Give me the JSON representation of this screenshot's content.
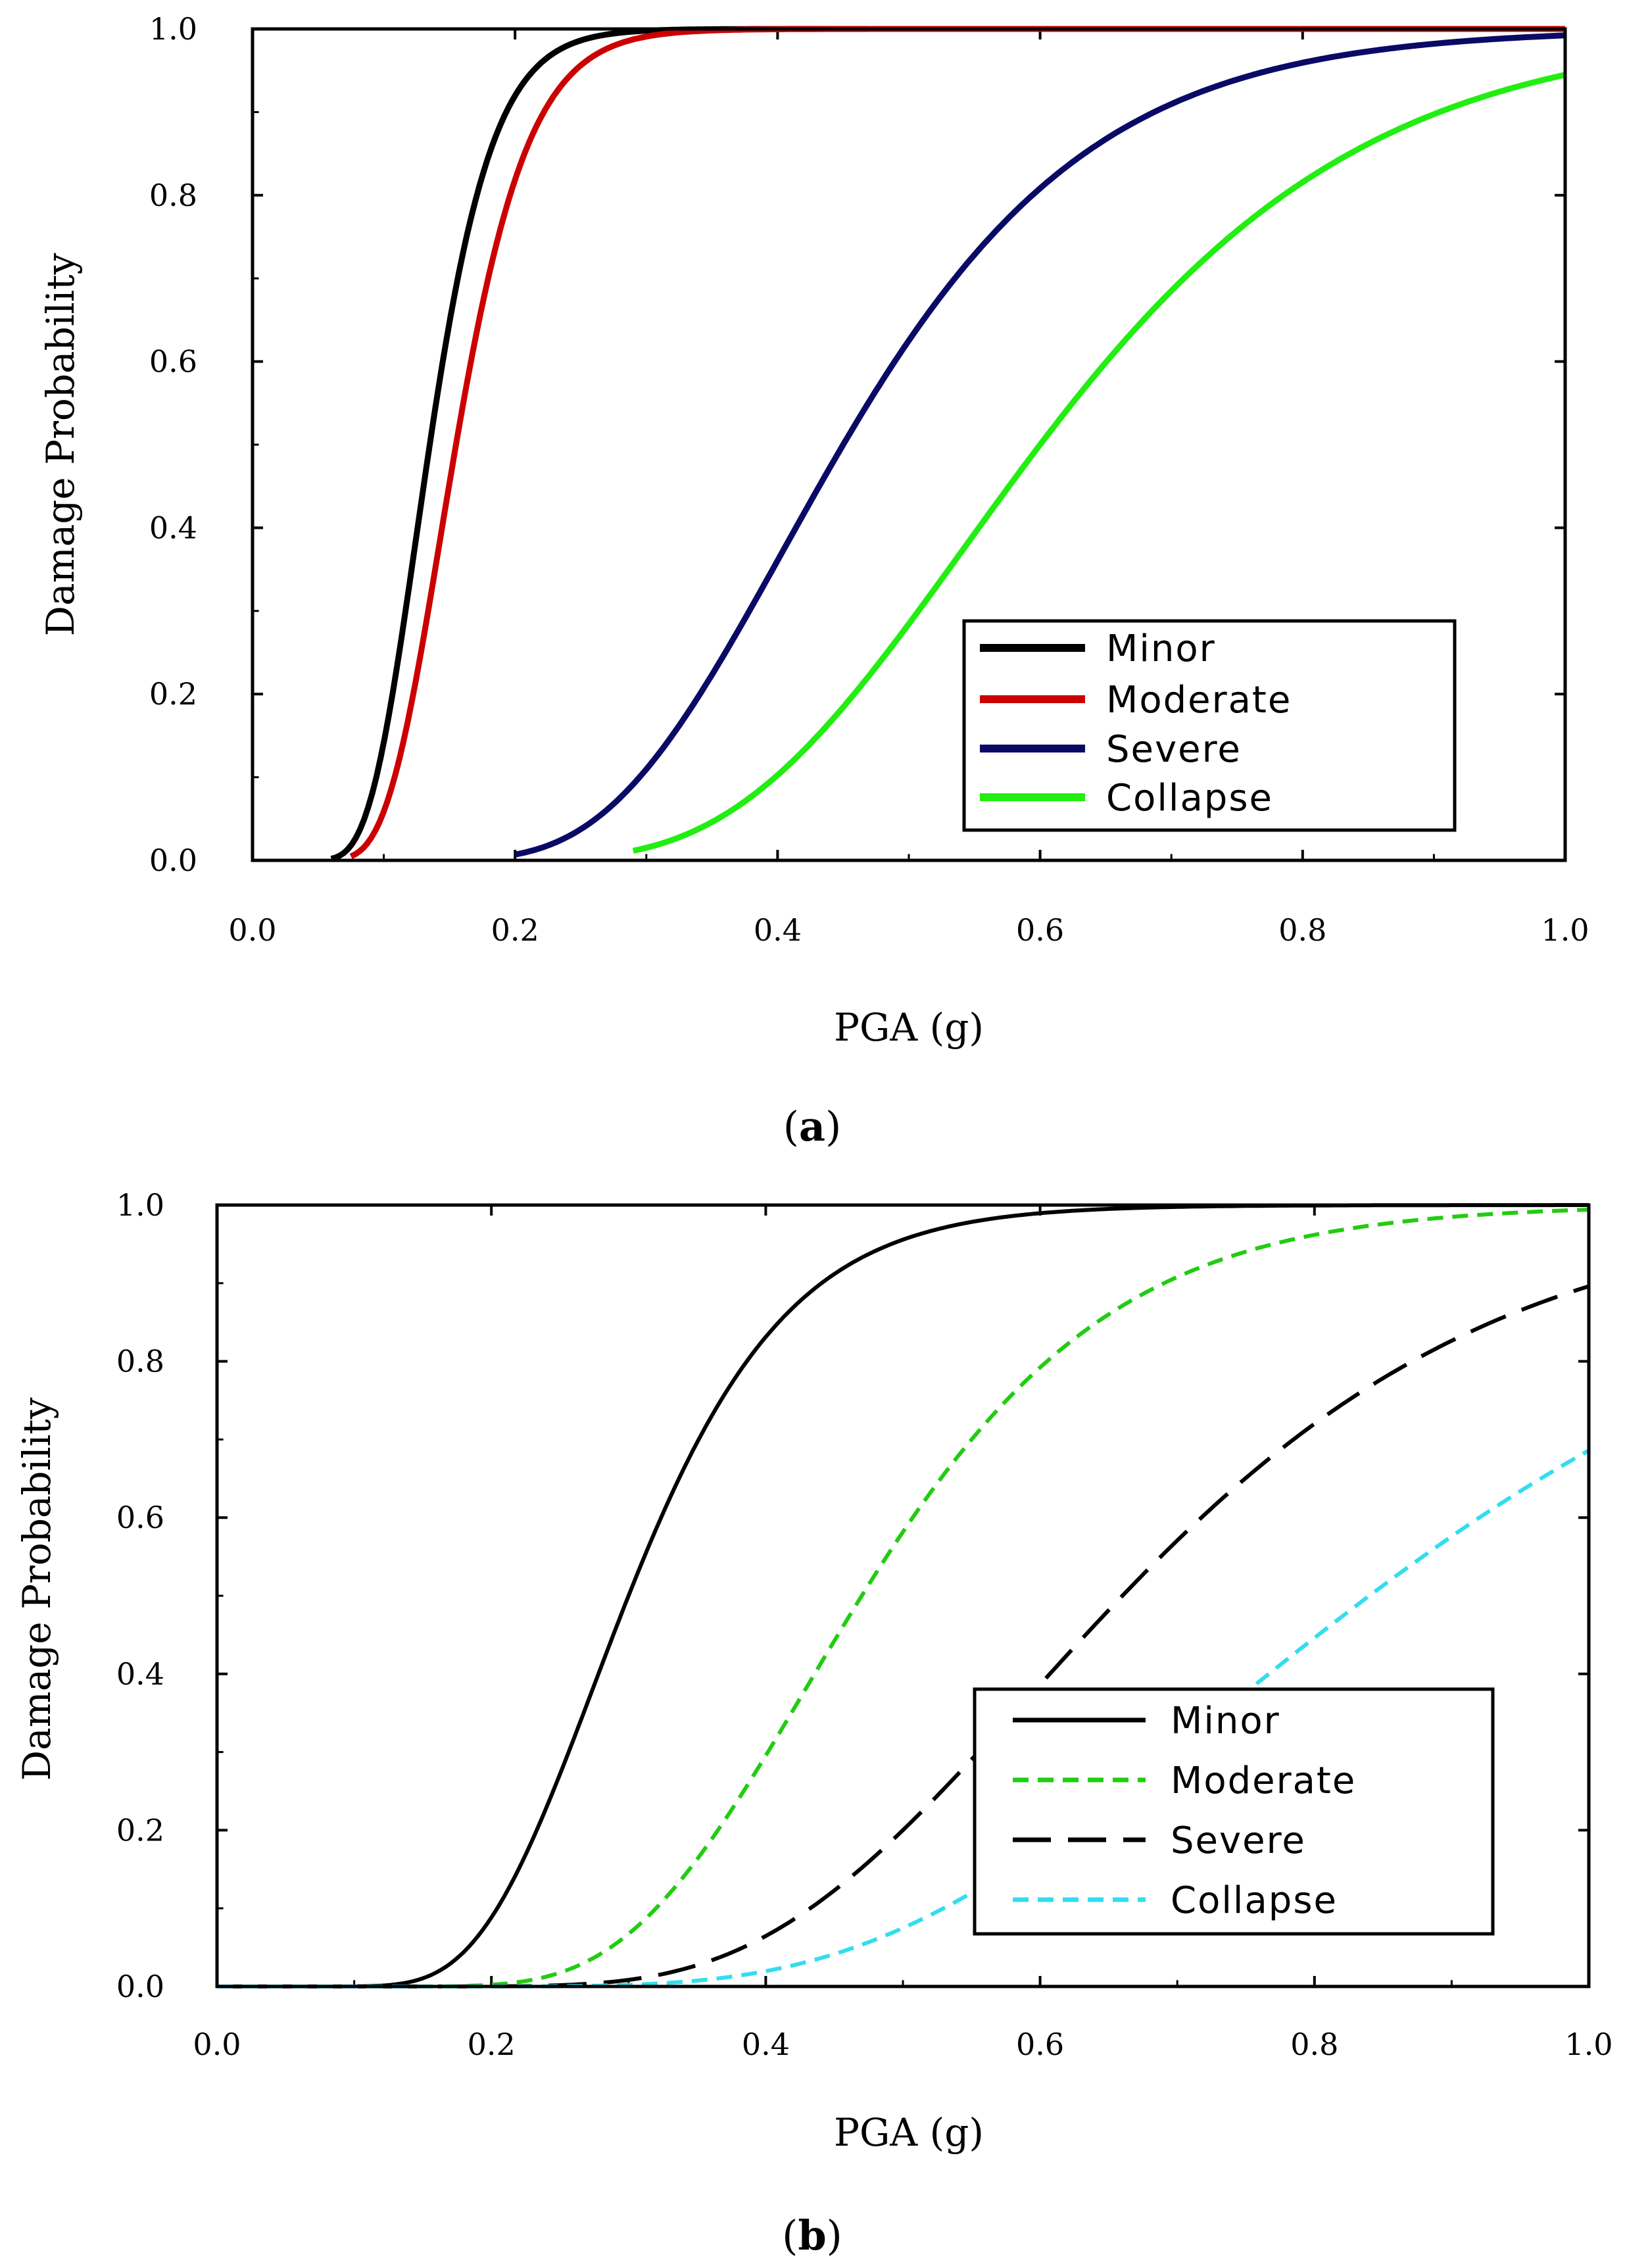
{
  "chart_data": [
    {
      "id": "a",
      "type": "line",
      "panel_label": "a",
      "xlabel": "PGA (g)",
      "ylabel": "Damage Probability",
      "xlim": [
        0,
        1
      ],
      "ylim": [
        0,
        1
      ],
      "xticks": [
        "0.0",
        "0.2",
        "0.4",
        "0.6",
        "0.8",
        "1.0"
      ],
      "yticks": [
        "0.0",
        "0.2",
        "0.4",
        "0.6",
        "0.8",
        "1.0"
      ],
      "legend_position": "bottom-right",
      "series": [
        {
          "name": "Minor",
          "color": "#000000",
          "dash": "solid",
          "median": 0.135,
          "beta": 0.28,
          "start": 0.06
        },
        {
          "name": "Moderate",
          "color": "#cc0000",
          "dash": "solid",
          "median": 0.155,
          "beta": 0.28,
          "start": 0.075
        },
        {
          "name": "Severe",
          "color": "#0a0a66",
          "dash": "solid",
          "median": 0.45,
          "beta": 0.33,
          "start": 0.2
        },
        {
          "name": "Collapse",
          "color": "#22ee11",
          "dash": "solid",
          "median": 0.6,
          "beta": 0.32,
          "start": 0.29
        }
      ]
    },
    {
      "id": "b",
      "type": "line",
      "panel_label": "b",
      "xlabel": "PGA (g)",
      "ylabel": "Damage Probability",
      "xlim": [
        0,
        1
      ],
      "ylim": [
        0,
        1
      ],
      "xticks": [
        "0.0",
        "0.2",
        "0.4",
        "0.6",
        "0.8",
        "1.0"
      ],
      "yticks": [
        "0.0",
        "0.2",
        "0.4",
        "0.6",
        "0.8",
        "1.0"
      ],
      "legend_position": "bottom-right",
      "series": [
        {
          "name": "Minor",
          "color": "#000000",
          "dash": "solid",
          "median": 0.3,
          "beta": 0.3,
          "start": 0.0
        },
        {
          "name": "Moderate",
          "color": "#22cc11",
          "dash": "short-dash",
          "median": 0.47,
          "beta": 0.3,
          "start": 0.0
        },
        {
          "name": "Severe",
          "color": "#000000",
          "dash": "long-dash",
          "median": 0.66,
          "beta": 0.33,
          "start": 0.0
        },
        {
          "name": "Collapse",
          "color": "#33ddee",
          "dash": "short-dash",
          "median": 0.84,
          "beta": 0.36,
          "start": 0.0
        }
      ]
    }
  ]
}
